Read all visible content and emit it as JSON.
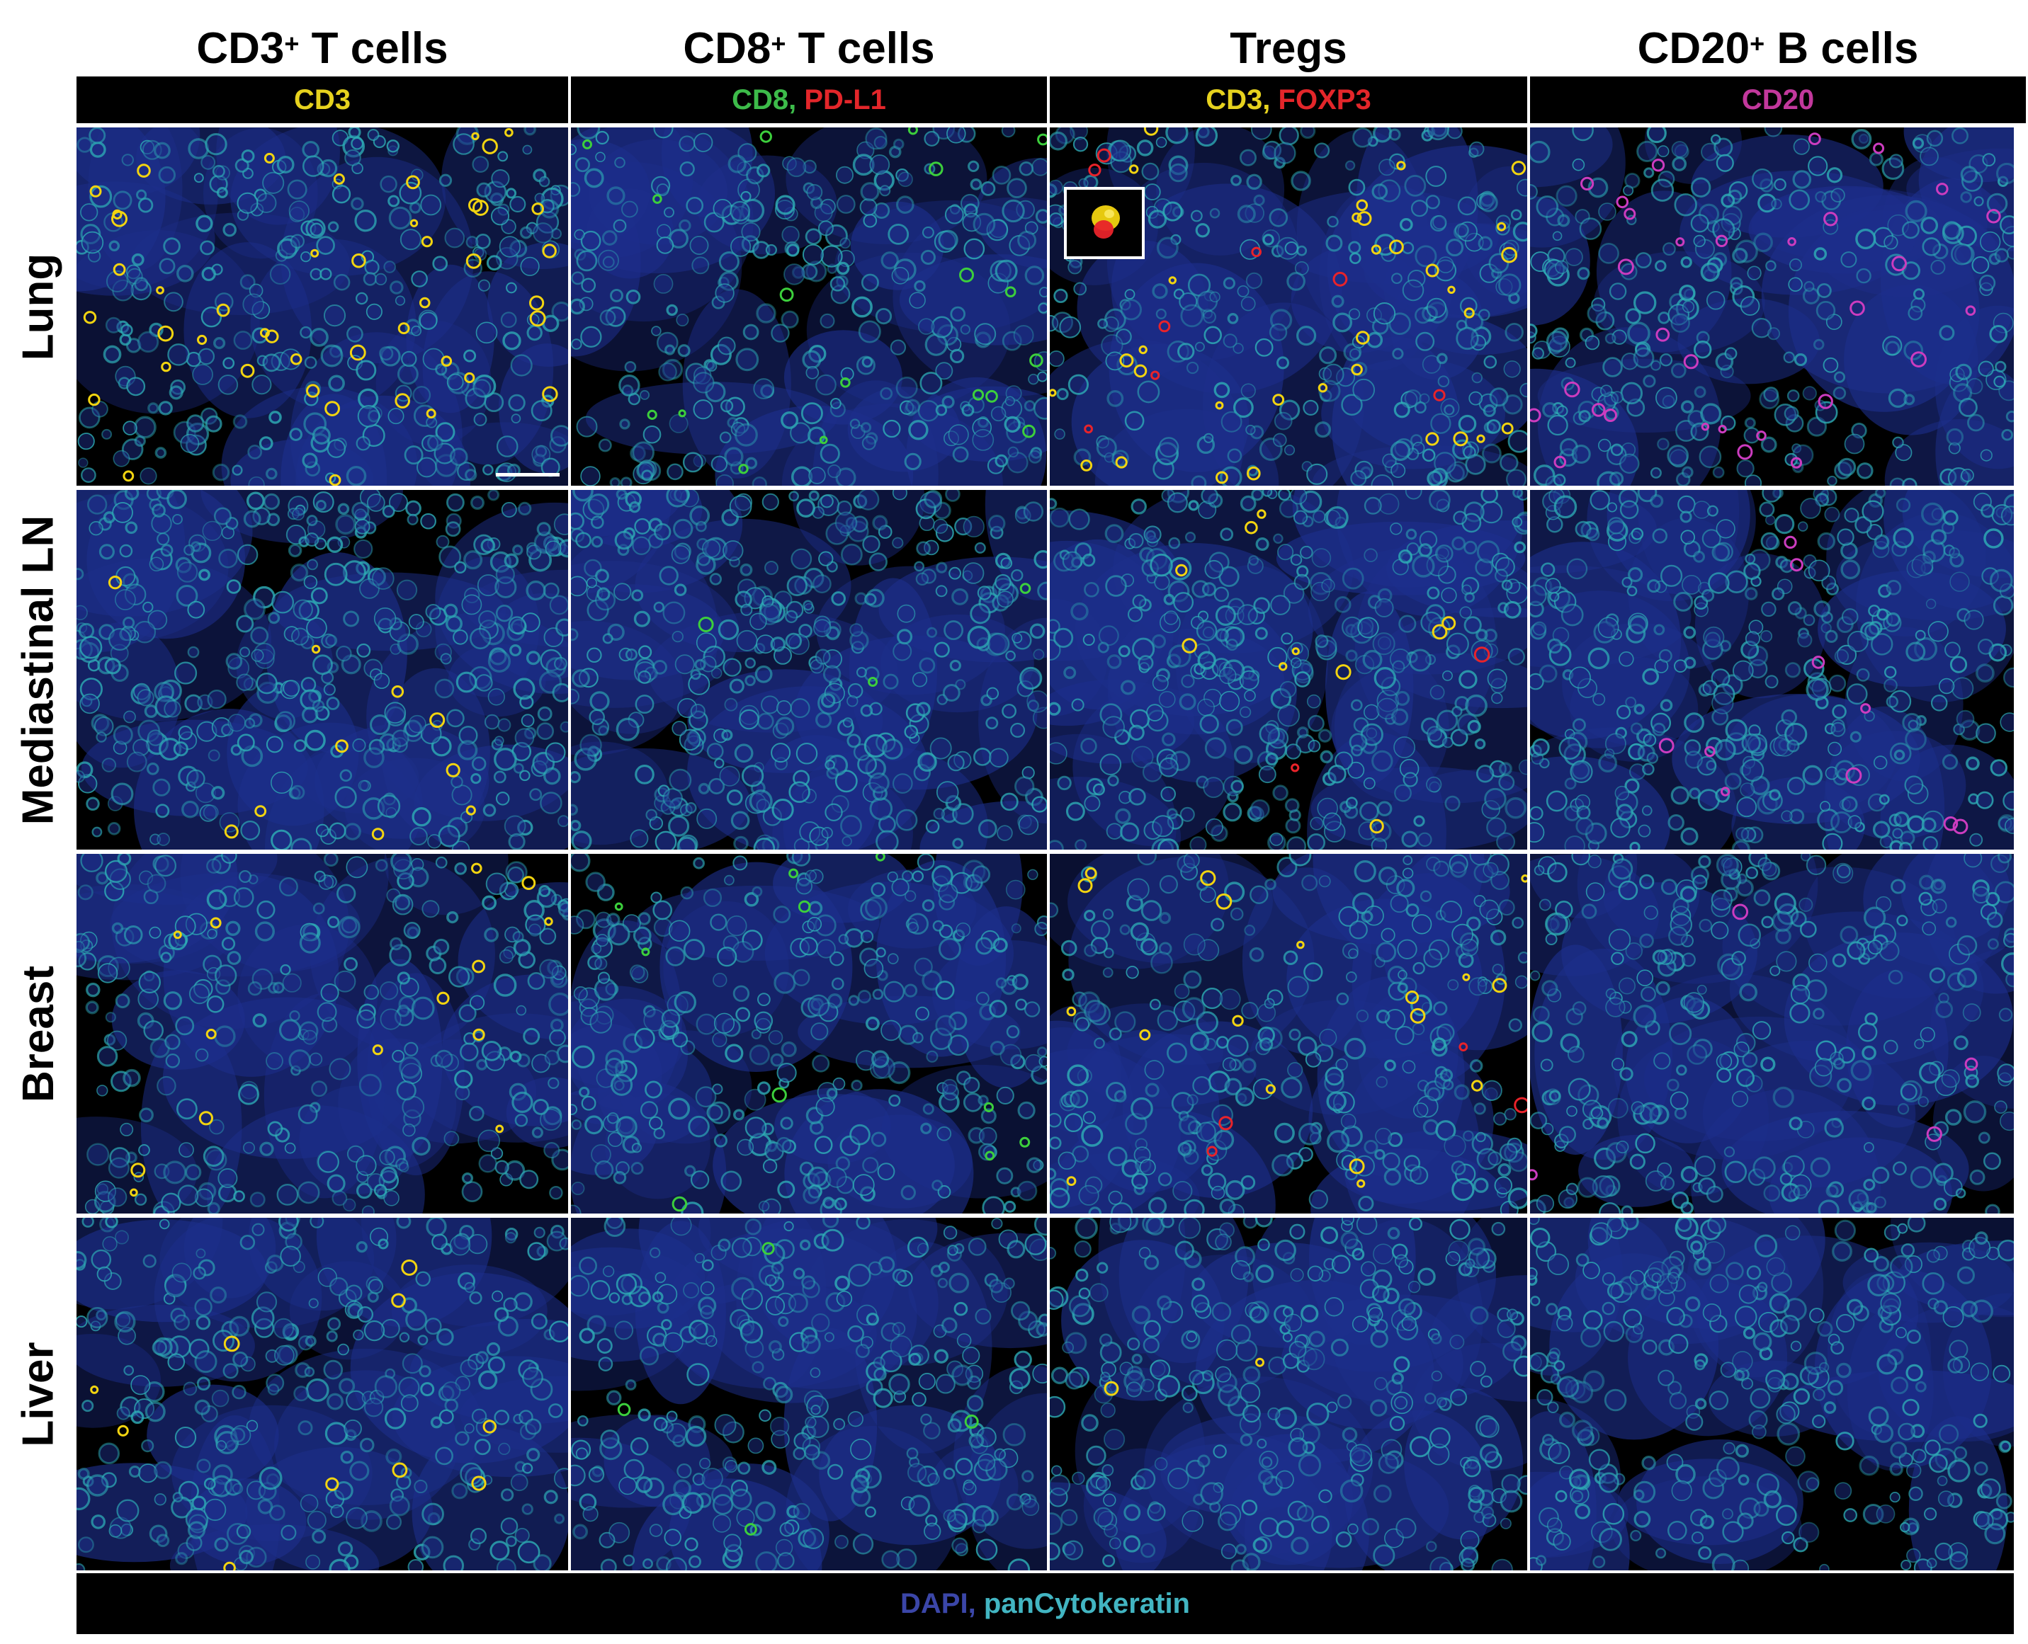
{
  "columns": [
    {
      "title": "CD3",
      "title_sup": "+",
      "title_rest": " T cells",
      "markers": [
        {
          "text": "CD3",
          "color": "#e6d21e"
        }
      ]
    },
    {
      "title": "CD8",
      "title_sup": "+",
      "title_rest": " T cells",
      "markers": [
        {
          "text": "CD8,",
          "color": "#3dbb4a"
        },
        {
          "text": "PD-L1",
          "color": "#e3262a"
        }
      ]
    },
    {
      "title": "Tregs",
      "title_sup": "",
      "title_rest": "",
      "markers": [
        {
          "text": "CD3,",
          "color": "#e6d21e"
        },
        {
          "text": "FOXP3",
          "color": "#e3262a"
        }
      ]
    },
    {
      "title": "CD20",
      "title_sup": "+",
      "title_rest": " B cells",
      "markers": [
        {
          "text": "CD20",
          "color": "#c2389c"
        }
      ]
    }
  ],
  "rows": [
    {
      "label": "Lung"
    },
    {
      "label": "Mediastinal LN"
    },
    {
      "label": "Breast"
    },
    {
      "label": "Liver"
    }
  ],
  "footer": [
    {
      "text": "DAPI,",
      "color": "#3b46a8"
    },
    {
      "text": "panCytokeratin",
      "color": "#42b5c2"
    }
  ],
  "colors": {
    "background": "#000000",
    "dapi": "#1d2f8c",
    "cytokeratin": "#2fb3b8",
    "cd3": "#f2d410",
    "cd8": "#3ccf3c",
    "foxp3": "#e8232a",
    "cd20": "#cc3cbf"
  }
}
